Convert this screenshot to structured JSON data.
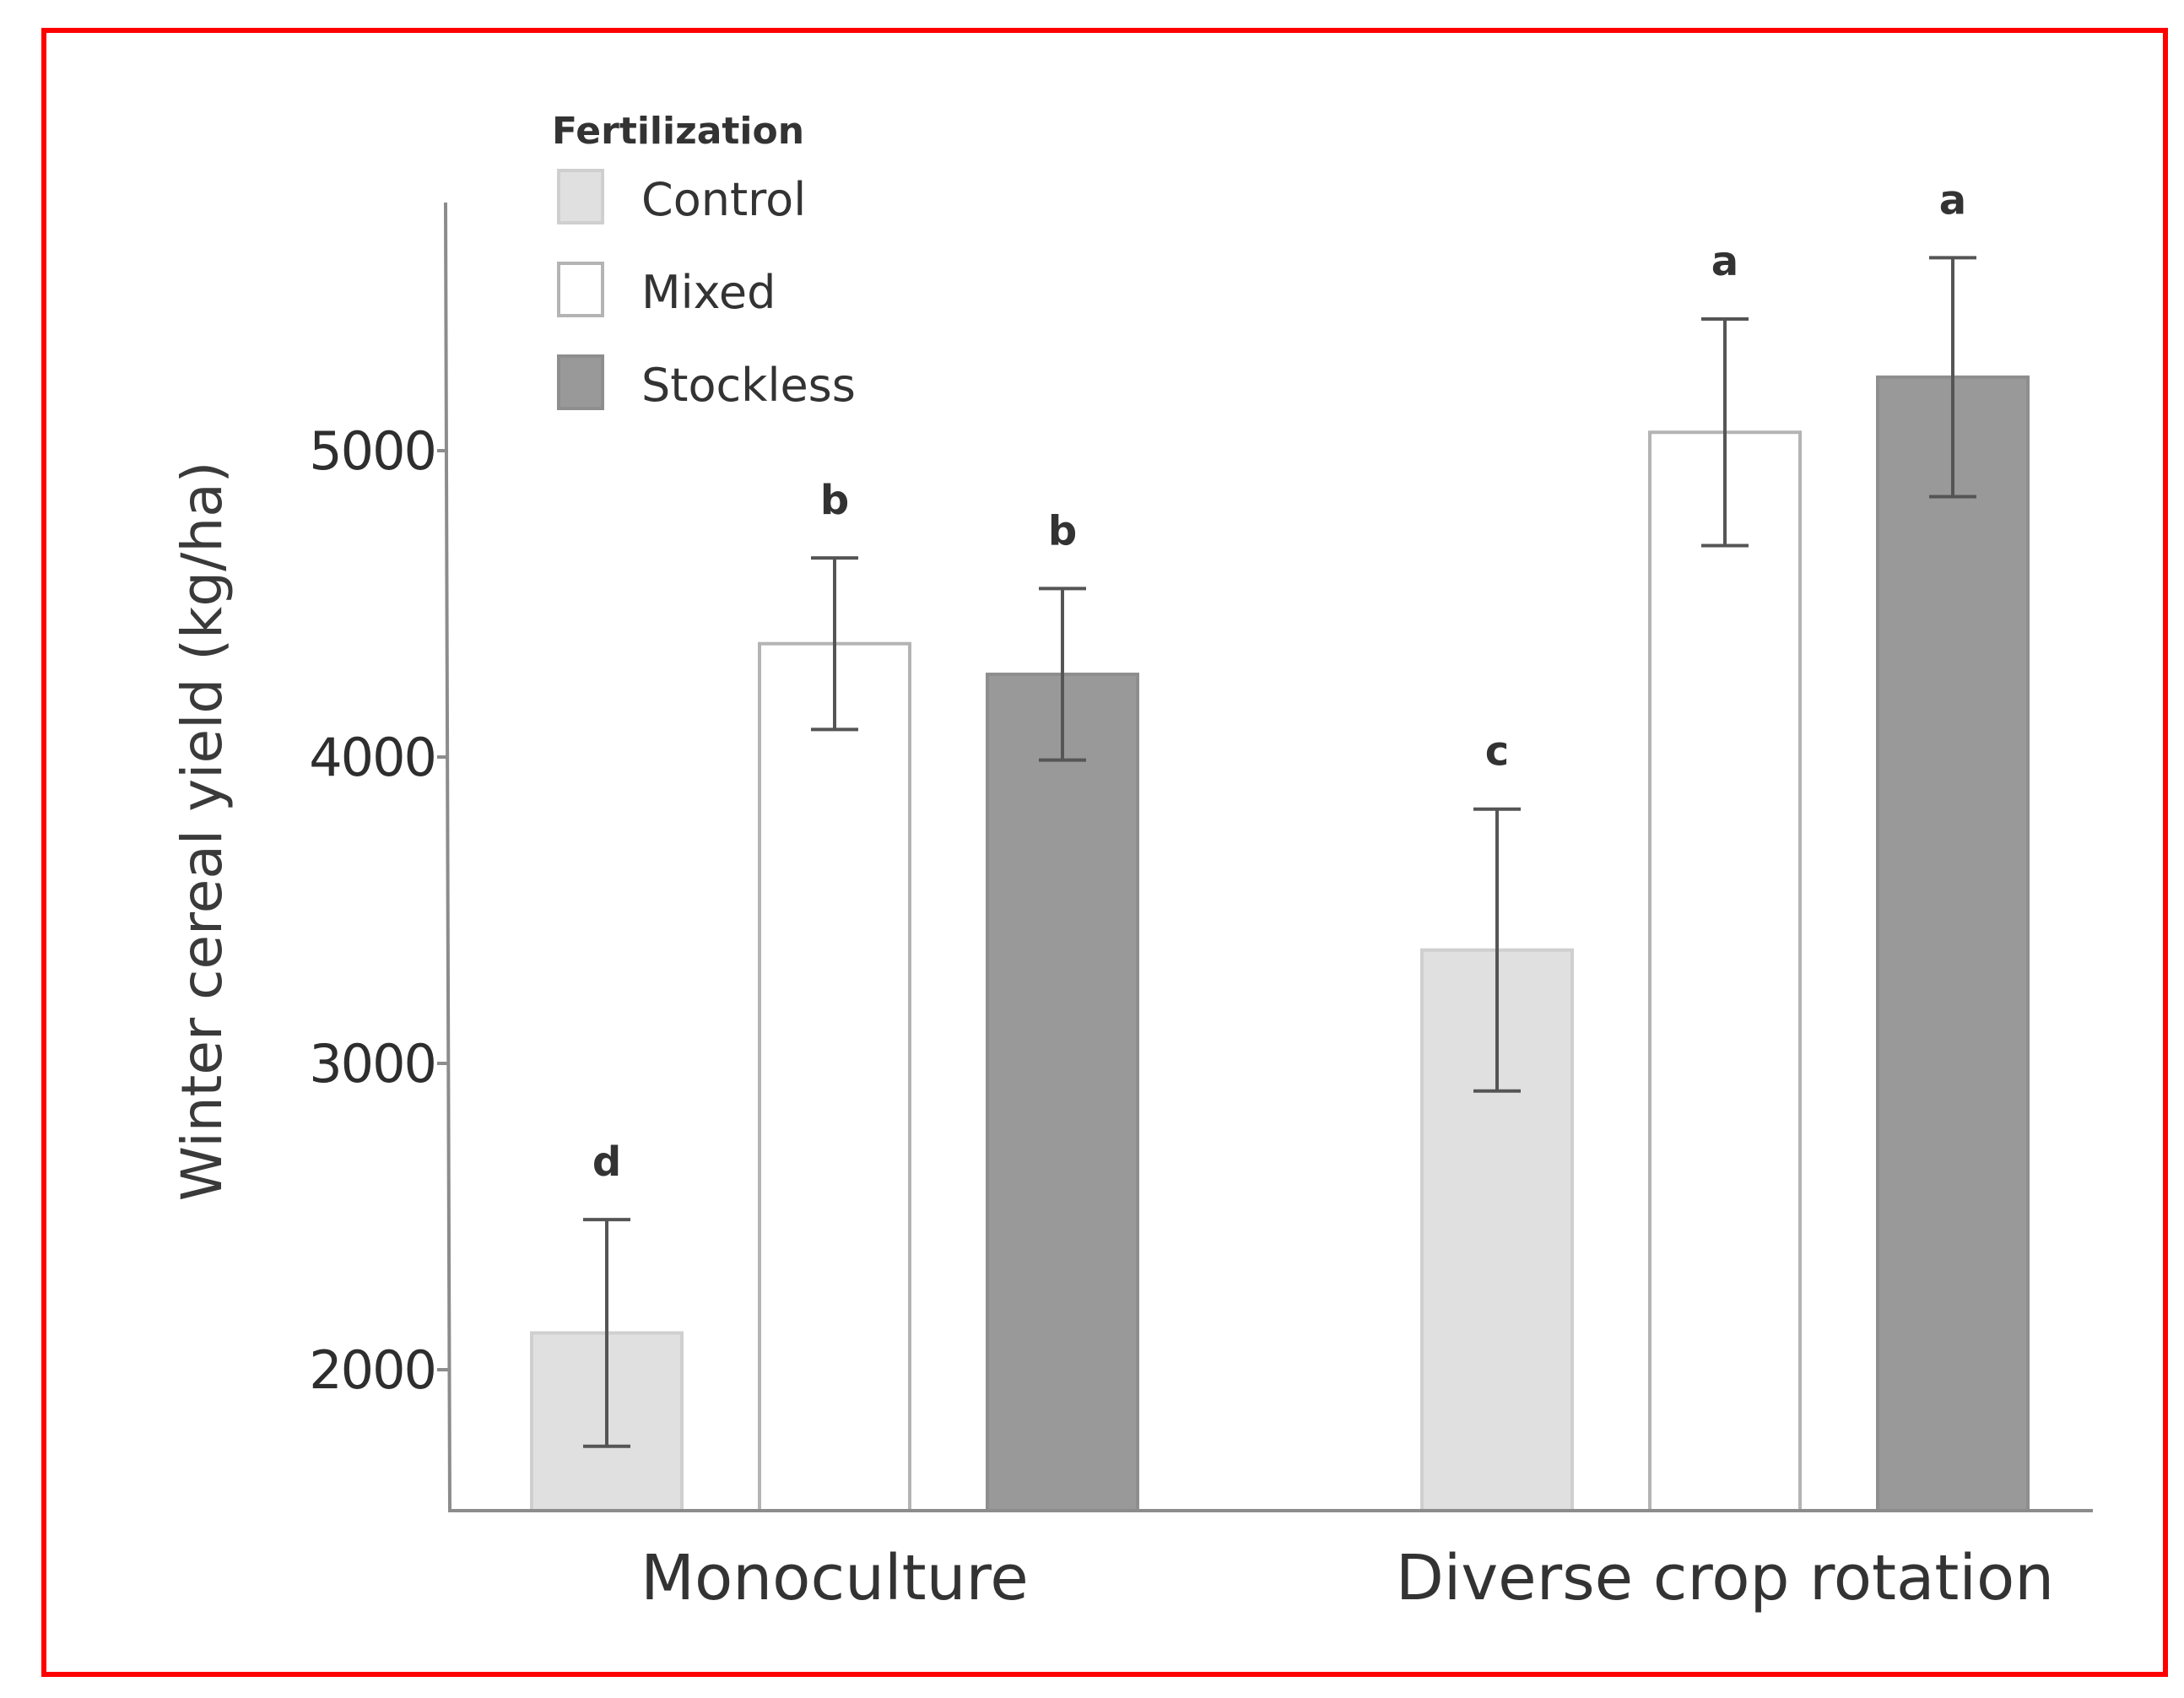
{
  "chart_data": {
    "type": "bar",
    "title": "",
    "xlabel": "",
    "ylabel": "Winter cereal yield (kg/ha)",
    "ylim": [
      1540,
      5810
    ],
    "yticks": [
      2000,
      3000,
      4000,
      5000
    ],
    "categories": [
      "Monoculture",
      "Diverse crop rotation"
    ],
    "legend": {
      "title": "Fertilization",
      "position": "top-left"
    },
    "series": [
      {
        "name": "Control",
        "color": "#e0e0e0",
        "stroke": "#cfcfcf",
        "values": [
          2120,
          3370
        ],
        "errors": [
          370,
          460
        ],
        "letters": [
          "d",
          "c"
        ]
      },
      {
        "name": "Mixed",
        "color": "#ffffff",
        "stroke": "#b4b4b4",
        "values": [
          4370,
          5060
        ],
        "errors": [
          280,
          370
        ],
        "letters": [
          "b",
          "a"
        ]
      },
      {
        "name": "Stockless",
        "color": "#999999",
        "stroke": "#8e8e8e",
        "values": [
          4270,
          5240
        ],
        "errors": [
          280,
          390
        ],
        "letters": [
          "b",
          "a"
        ]
      }
    ]
  }
}
